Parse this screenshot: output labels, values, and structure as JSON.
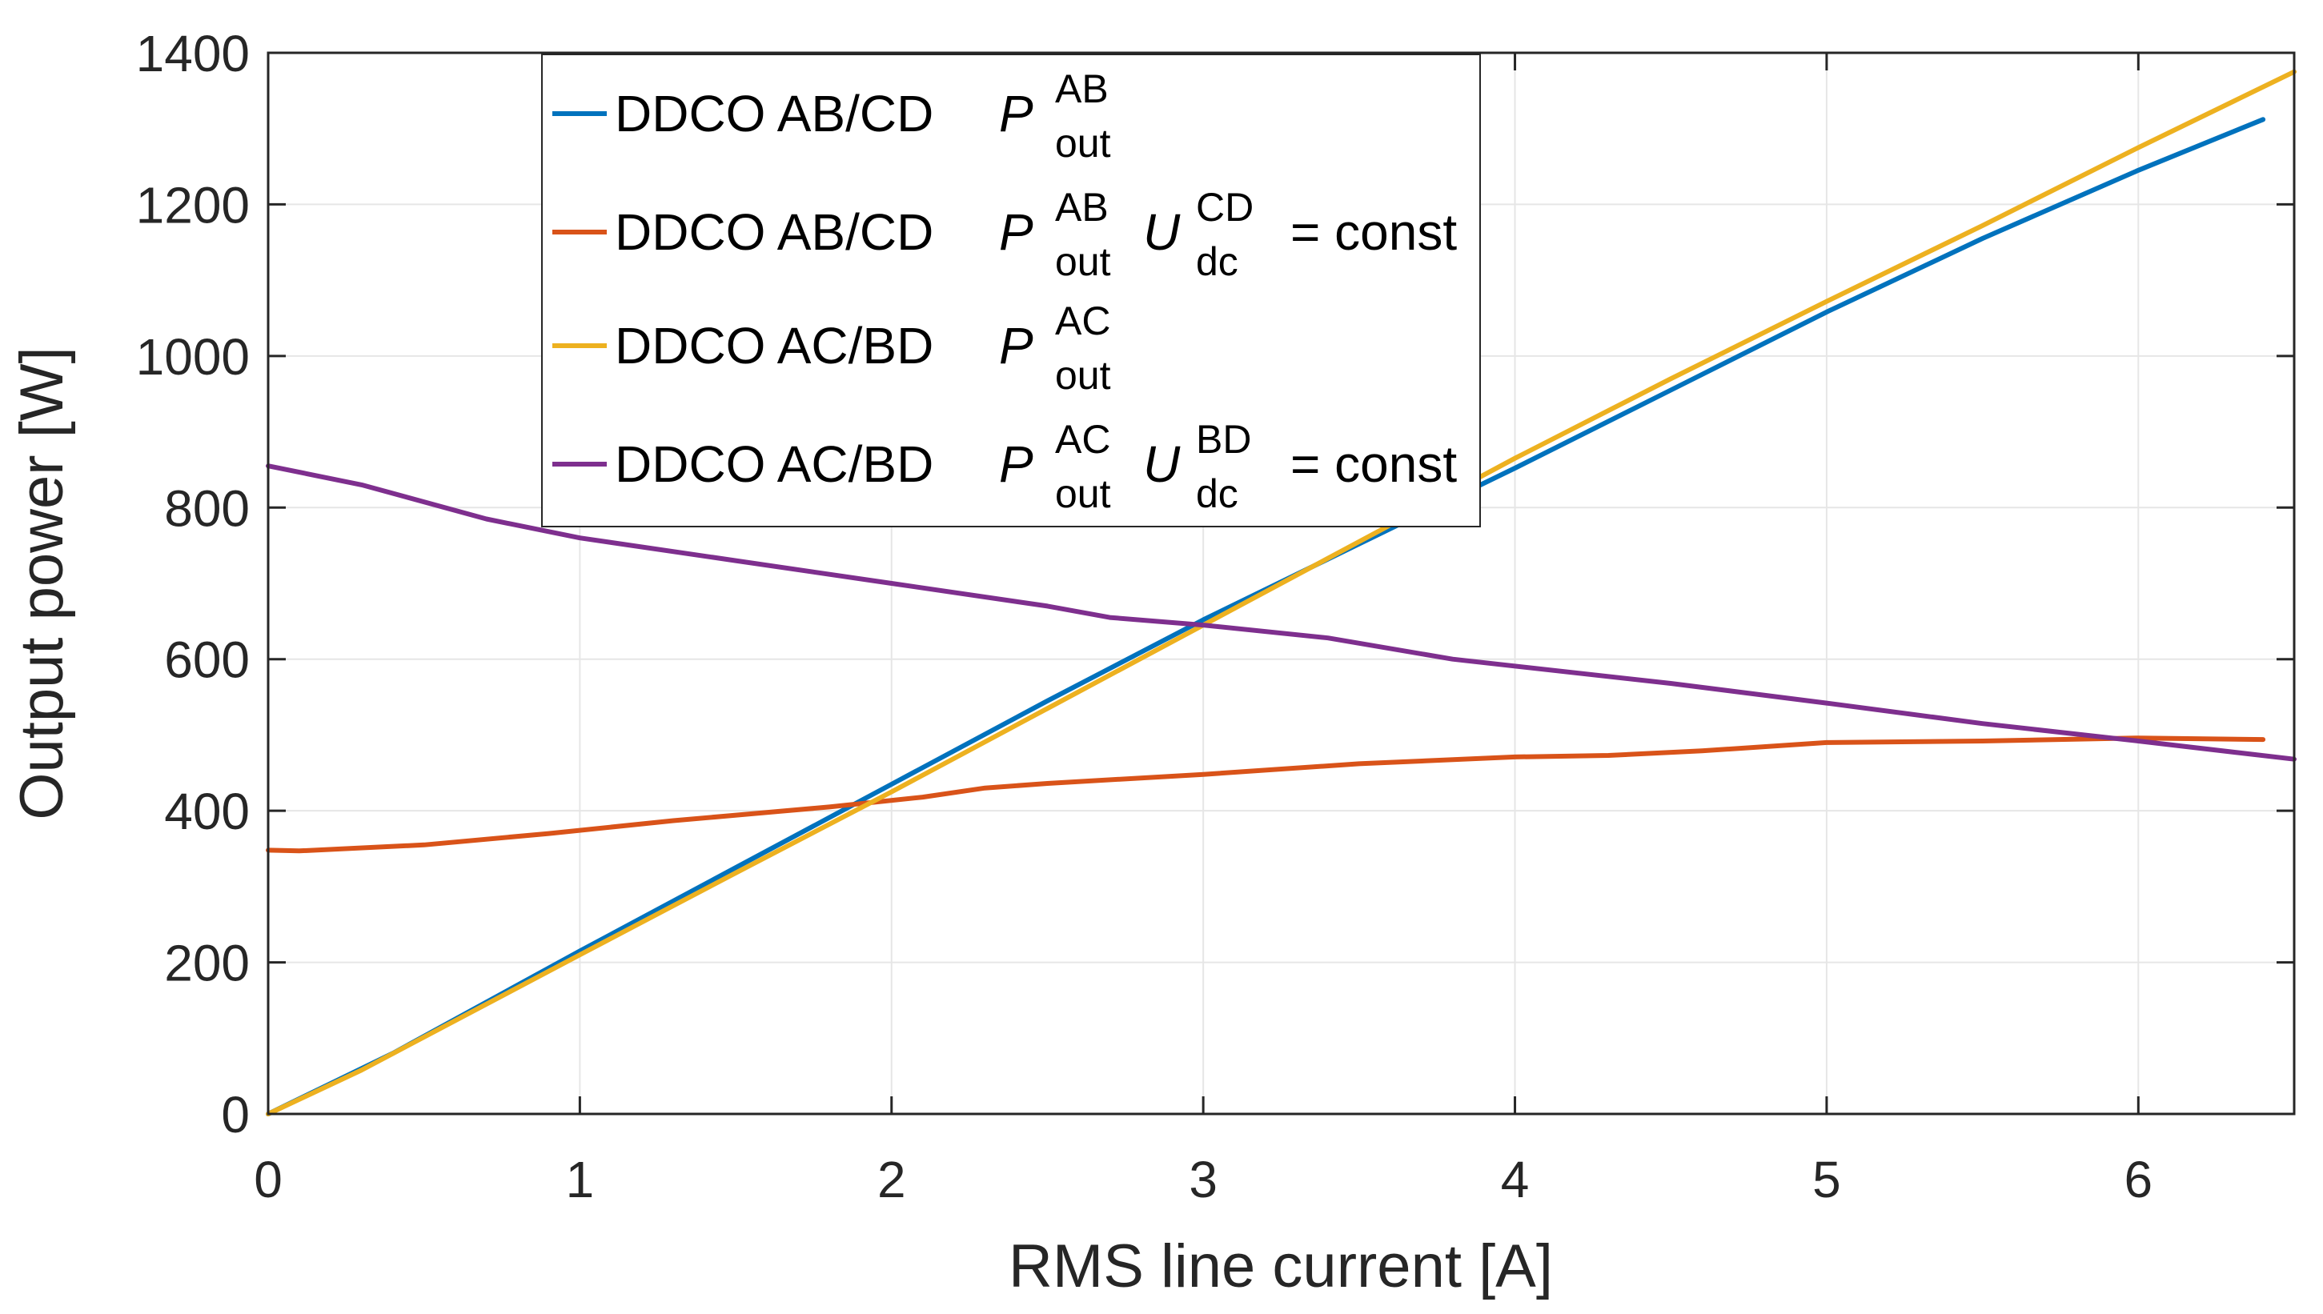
{
  "chart_data": {
    "type": "line",
    "title": "",
    "xlabel": "RMS line current  [A]",
    "ylabel": "Output power [W]",
    "xlim": [
      0,
      6.5
    ],
    "ylim": [
      0,
      1400
    ],
    "xticks": [
      0,
      1,
      2,
      3,
      4,
      5,
      6
    ],
    "yticks": [
      0,
      200,
      400,
      600,
      800,
      1000,
      1200,
      1400
    ],
    "xtick_labels": [
      "0",
      "1",
      "2",
      "3",
      "4",
      "5",
      "6"
    ],
    "ytick_labels": [
      "0",
      "200",
      "400",
      "600",
      "800",
      "1000",
      "1200",
      "1400"
    ],
    "grid": true,
    "legend_position": "top-center",
    "series": [
      {
        "name": "DDCO AB/CD P_out^AB",
        "legend": {
          "main": "DDCO AB/CD",
          "var": "P",
          "sup": "AB",
          "sub": "out"
        },
        "color": "#0072BD",
        "x": [
          0,
          0.4,
          1.0,
          1.5,
          2.0,
          2.5,
          3.0,
          3.5,
          4.0,
          4.5,
          5.0,
          5.5,
          6.0,
          6.4
        ],
        "y": [
          0,
          80,
          215,
          325,
          435,
          545,
          652,
          752,
          852,
          955,
          1058,
          1155,
          1245,
          1312
        ]
      },
      {
        "name": "DDCO AB/CD P_out^AB U_dc^CD = const",
        "legend": {
          "main": "DDCO AB/CD",
          "var": "P",
          "sup": "AB",
          "sub": "out",
          "var2": "U",
          "sup2": "CD",
          "sub2": "dc",
          "tail": "= const"
        },
        "color": "#D95319",
        "x": [
          0,
          0.1,
          0.5,
          0.9,
          1.3,
          1.8,
          2.1,
          2.3,
          2.5,
          3.0,
          3.5,
          4.0,
          4.3,
          4.6,
          5.0,
          5.5,
          6.0,
          6.4
        ],
        "y": [
          348,
          347,
          355,
          370,
          387,
          405,
          418,
          430,
          436,
          448,
          462,
          471,
          473,
          479,
          490,
          492,
          496,
          494
        ]
      },
      {
        "name": "DDCO AC/BD P_out^AC",
        "legend": {
          "main": "DDCO AC/BD",
          "var": "P",
          "sup": "AC",
          "sub": "out"
        },
        "color": "#EDB120",
        "x": [
          0,
          0.3,
          1.0,
          1.5,
          2.0,
          2.5,
          3.0,
          3.5,
          4.0,
          4.5,
          5.0,
          5.5,
          6.0,
          6.5
        ],
        "y": [
          0,
          58,
          210,
          318,
          425,
          535,
          645,
          755,
          865,
          970,
          1072,
          1172,
          1275,
          1375
        ]
      },
      {
        "name": "DDCO AC/BD P_out^AC U_dc^BD = const",
        "legend": {
          "main": "DDCO AC/BD",
          "var": "P",
          "sup": "AC",
          "sub": "out",
          "var2": "U",
          "sup2": "BD",
          "sub2": "dc",
          "tail": "= const"
        },
        "color": "#7E2F8E",
        "x": [
          0,
          0.3,
          0.7,
          1.0,
          1.5,
          2.0,
          2.5,
          2.7,
          3.0,
          3.4,
          3.8,
          4.5,
          5.0,
          5.5,
          6.0,
          6.5
        ],
        "y": [
          855,
          830,
          785,
          760,
          730,
          700,
          670,
          655,
          645,
          628,
          600,
          568,
          542,
          515,
          492,
          468
        ]
      }
    ]
  }
}
